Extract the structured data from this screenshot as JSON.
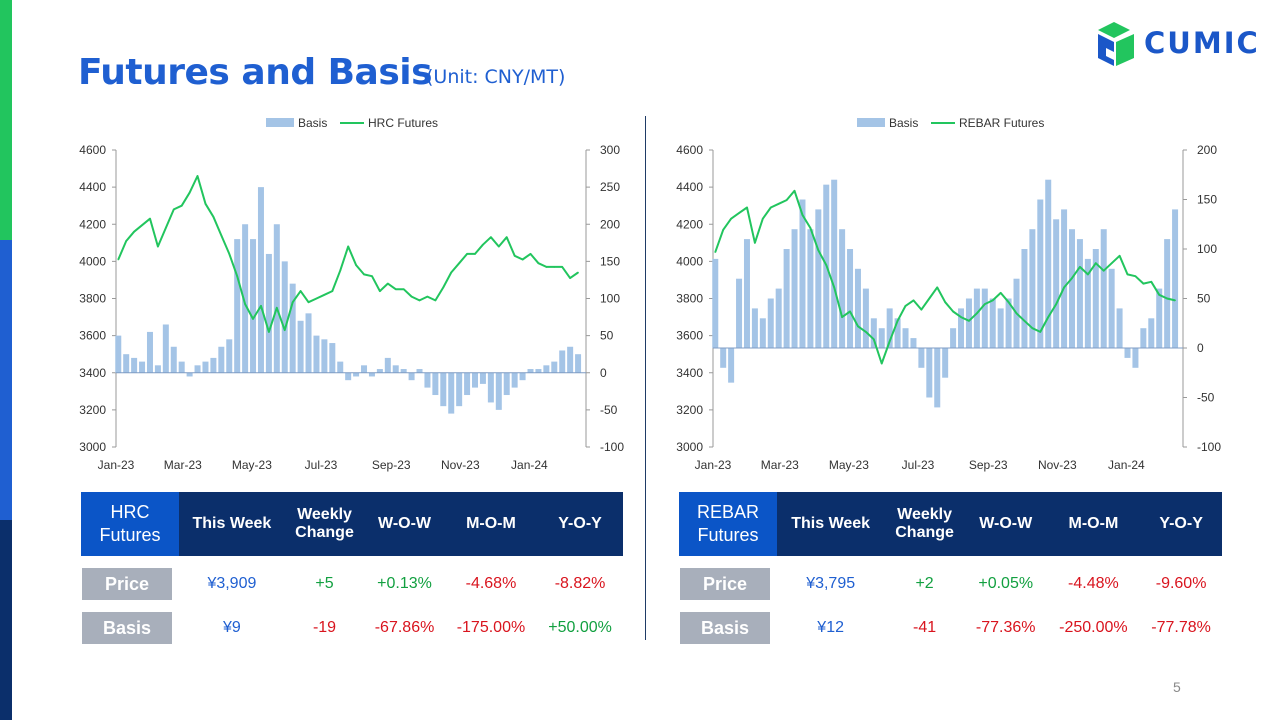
{
  "title": "Futures and Basis",
  "unit": "(Unit: CNY/MT)",
  "logo": {
    "text": "CUMIC",
    "icon": "cumic-logo-icon"
  },
  "page_number": "5",
  "colors": {
    "basis": "#a4c4e6",
    "futures": "#22c55e",
    "title": "#1f5fd1",
    "header": "#0b2f6b",
    "header_first": "#0b55c7"
  },
  "chart_data": [
    {
      "type": "bar+line",
      "legend": [
        "Basis",
        "HRC Futures"
      ],
      "x_ticks": [
        "Jan-23",
        "Mar-23",
        "May-23",
        "Jul-23",
        "Sep-23",
        "Nov-23",
        "Jan-24"
      ],
      "y_left_ticks": [
        "4600",
        "4400",
        "4200",
        "4000",
        "3800",
        "3600",
        "3400",
        "3200",
        "3000"
      ],
      "y_right_ticks": [
        "300",
        "250",
        "200",
        "150",
        "100",
        "50",
        "0",
        "-50",
        "-100"
      ],
      "ylim_left": [
        3000,
        4600
      ],
      "ylim_right": [
        -100,
        300
      ],
      "futures_series": [
        [
          "2023-01-03",
          4010
        ],
        [
          "2023-01-10",
          4110
        ],
        [
          "2023-01-17",
          4160
        ],
        [
          "2023-01-31",
          4230
        ],
        [
          "2023-02-07",
          4080
        ],
        [
          "2023-02-14",
          4180
        ],
        [
          "2023-02-21",
          4280
        ],
        [
          "2023-02-28",
          4300
        ],
        [
          "2023-03-07",
          4370
        ],
        [
          "2023-03-14",
          4460
        ],
        [
          "2023-03-21",
          4310
        ],
        [
          "2023-03-28",
          4240
        ],
        [
          "2023-04-04",
          4140
        ],
        [
          "2023-04-11",
          4040
        ],
        [
          "2023-04-18",
          3920
        ],
        [
          "2023-04-25",
          3770
        ],
        [
          "2023-05-02",
          3690
        ],
        [
          "2023-05-09",
          3760
        ],
        [
          "2023-05-16",
          3620
        ],
        [
          "2023-05-23",
          3750
        ],
        [
          "2023-05-30",
          3630
        ],
        [
          "2023-06-06",
          3780
        ],
        [
          "2023-06-13",
          3840
        ],
        [
          "2023-06-20",
          3780
        ],
        [
          "2023-06-27",
          3800
        ],
        [
          "2023-07-04",
          3820
        ],
        [
          "2023-07-11",
          3840
        ],
        [
          "2023-07-18",
          3950
        ],
        [
          "2023-07-25",
          4080
        ],
        [
          "2023-08-01",
          3980
        ],
        [
          "2023-08-08",
          3930
        ],
        [
          "2023-08-15",
          3920
        ],
        [
          "2023-08-22",
          3840
        ],
        [
          "2023-08-29",
          3880
        ],
        [
          "2023-09-05",
          3850
        ],
        [
          "2023-09-12",
          3850
        ],
        [
          "2023-09-19",
          3810
        ],
        [
          "2023-09-26",
          3790
        ],
        [
          "2023-10-03",
          3810
        ],
        [
          "2023-10-10",
          3790
        ],
        [
          "2023-10-17",
          3860
        ],
        [
          "2023-10-24",
          3940
        ],
        [
          "2023-10-31",
          3990
        ],
        [
          "2023-11-07",
          4040
        ],
        [
          "2023-11-14",
          4040
        ],
        [
          "2023-11-21",
          4090
        ],
        [
          "2023-11-28",
          4130
        ],
        [
          "2023-12-05",
          4080
        ],
        [
          "2023-12-12",
          4130
        ],
        [
          "2023-12-19",
          4030
        ],
        [
          "2023-12-26",
          4010
        ],
        [
          "2024-01-02",
          4040
        ],
        [
          "2024-01-09",
          3990
        ],
        [
          "2024-01-16",
          3970
        ],
        [
          "2024-01-23",
          3970
        ],
        [
          "2024-01-30",
          3970
        ],
        [
          "2024-02-06",
          3910
        ],
        [
          "2024-02-13",
          3940
        ]
      ],
      "basis_series": [
        [
          "2023-01-03",
          50
        ],
        [
          "2023-01-10",
          25
        ],
        [
          "2023-01-17",
          20
        ],
        [
          "2023-01-24",
          15
        ],
        [
          "2023-01-31",
          55
        ],
        [
          "2023-02-07",
          10
        ],
        [
          "2023-02-14",
          65
        ],
        [
          "2023-02-21",
          35
        ],
        [
          "2023-02-28",
          15
        ],
        [
          "2023-03-07",
          -5
        ],
        [
          "2023-03-14",
          10
        ],
        [
          "2023-03-21",
          15
        ],
        [
          "2023-03-28",
          20
        ],
        [
          "2023-04-04",
          35
        ],
        [
          "2023-04-11",
          45
        ],
        [
          "2023-04-18",
          180
        ],
        [
          "2023-04-25",
          200
        ],
        [
          "2023-05-02",
          180
        ],
        [
          "2023-05-09",
          250
        ],
        [
          "2023-05-16",
          160
        ],
        [
          "2023-05-23",
          200
        ],
        [
          "2023-05-30",
          150
        ],
        [
          "2023-06-06",
          120
        ],
        [
          "2023-06-13",
          70
        ],
        [
          "2023-06-20",
          80
        ],
        [
          "2023-06-27",
          50
        ],
        [
          "2023-07-04",
          45
        ],
        [
          "2023-07-11",
          40
        ],
        [
          "2023-07-18",
          15
        ],
        [
          "2023-07-25",
          -10
        ],
        [
          "2023-08-01",
          -5
        ],
        [
          "2023-08-08",
          10
        ],
        [
          "2023-08-15",
          -5
        ],
        [
          "2023-08-22",
          5
        ],
        [
          "2023-08-29",
          20
        ],
        [
          "2023-09-05",
          10
        ],
        [
          "2023-09-12",
          5
        ],
        [
          "2023-09-19",
          -10
        ],
        [
          "2023-09-26",
          5
        ],
        [
          "2023-10-03",
          -20
        ],
        [
          "2023-10-10",
          -30
        ],
        [
          "2023-10-17",
          -45
        ],
        [
          "2023-10-24",
          -55
        ],
        [
          "2023-10-31",
          -45
        ],
        [
          "2023-11-07",
          -30
        ],
        [
          "2023-11-14",
          -20
        ],
        [
          "2023-11-21",
          -15
        ],
        [
          "2023-11-28",
          -40
        ],
        [
          "2023-12-05",
          -50
        ],
        [
          "2023-12-12",
          -30
        ],
        [
          "2023-12-19",
          -20
        ],
        [
          "2023-12-26",
          -10
        ],
        [
          "2024-01-02",
          5
        ],
        [
          "2024-01-09",
          5
        ],
        [
          "2024-01-16",
          10
        ],
        [
          "2024-01-23",
          15
        ],
        [
          "2024-01-30",
          30
        ],
        [
          "2024-02-06",
          35
        ],
        [
          "2024-02-13",
          25
        ]
      ]
    },
    {
      "type": "bar+line",
      "legend": [
        "Basis",
        "REBAR Futures"
      ],
      "x_ticks": [
        "Jan-23",
        "Mar-23",
        "May-23",
        "Jul-23",
        "Sep-23",
        "Nov-23",
        "Jan-24"
      ],
      "y_left_ticks": [
        "4600",
        "4400",
        "4200",
        "4000",
        "3800",
        "3600",
        "3400",
        "3200",
        "3000"
      ],
      "y_right_ticks": [
        "200",
        "150",
        "100",
        "50",
        "0",
        "-50",
        "-100"
      ],
      "ylim_left": [
        3000,
        4600
      ],
      "ylim_right": [
        -100,
        200
      ],
      "futures_series": [
        [
          "2023-01-03",
          4050
        ],
        [
          "2023-01-10",
          4170
        ],
        [
          "2023-01-17",
          4230
        ],
        [
          "2023-01-24",
          4260
        ],
        [
          "2023-01-31",
          4290
        ],
        [
          "2023-02-07",
          4100
        ],
        [
          "2023-02-14",
          4230
        ],
        [
          "2023-02-21",
          4290
        ],
        [
          "2023-02-28",
          4310
        ],
        [
          "2023-03-07",
          4330
        ],
        [
          "2023-03-14",
          4380
        ],
        [
          "2023-03-21",
          4250
        ],
        [
          "2023-03-28",
          4180
        ],
        [
          "2023-04-04",
          4060
        ],
        [
          "2023-04-11",
          3980
        ],
        [
          "2023-04-18",
          3860
        ],
        [
          "2023-04-25",
          3700
        ],
        [
          "2023-05-02",
          3730
        ],
        [
          "2023-05-09",
          3650
        ],
        [
          "2023-05-16",
          3620
        ],
        [
          "2023-05-23",
          3580
        ],
        [
          "2023-05-30",
          3450
        ],
        [
          "2023-06-06",
          3570
        ],
        [
          "2023-06-13",
          3680
        ],
        [
          "2023-06-20",
          3760
        ],
        [
          "2023-06-27",
          3790
        ],
        [
          "2023-07-04",
          3740
        ],
        [
          "2023-07-11",
          3800
        ],
        [
          "2023-07-18",
          3860
        ],
        [
          "2023-07-25",
          3780
        ],
        [
          "2023-08-01",
          3730
        ],
        [
          "2023-08-08",
          3700
        ],
        [
          "2023-08-15",
          3680
        ],
        [
          "2023-08-22",
          3720
        ],
        [
          "2023-08-29",
          3770
        ],
        [
          "2023-09-05",
          3790
        ],
        [
          "2023-09-12",
          3830
        ],
        [
          "2023-09-19",
          3780
        ],
        [
          "2023-09-26",
          3720
        ],
        [
          "2023-10-03",
          3680
        ],
        [
          "2023-10-10",
          3640
        ],
        [
          "2023-10-17",
          3620
        ],
        [
          "2023-10-24",
          3700
        ],
        [
          "2023-10-31",
          3770
        ],
        [
          "2023-11-07",
          3860
        ],
        [
          "2023-11-14",
          3910
        ],
        [
          "2023-11-21",
          3970
        ],
        [
          "2023-11-28",
          3930
        ],
        [
          "2023-12-05",
          3990
        ],
        [
          "2023-12-12",
          3950
        ],
        [
          "2023-12-19",
          3990
        ],
        [
          "2023-12-26",
          4030
        ],
        [
          "2024-01-02",
          3930
        ],
        [
          "2024-01-09",
          3920
        ],
        [
          "2024-01-16",
          3880
        ],
        [
          "2024-01-23",
          3890
        ],
        [
          "2024-01-30",
          3820
        ],
        [
          "2024-02-06",
          3800
        ],
        [
          "2024-02-13",
          3790
        ]
      ],
      "basis_series": [
        [
          "2023-01-03",
          90
        ],
        [
          "2023-01-10",
          -20
        ],
        [
          "2023-01-17",
          -35
        ],
        [
          "2023-01-24",
          70
        ],
        [
          "2023-01-31",
          110
        ],
        [
          "2023-02-07",
          40
        ],
        [
          "2023-02-14",
          30
        ],
        [
          "2023-02-21",
          50
        ],
        [
          "2023-02-28",
          60
        ],
        [
          "2023-03-07",
          100
        ],
        [
          "2023-03-14",
          120
        ],
        [
          "2023-03-21",
          150
        ],
        [
          "2023-03-28",
          120
        ],
        [
          "2023-04-04",
          140
        ],
        [
          "2023-04-11",
          165
        ],
        [
          "2023-04-18",
          170
        ],
        [
          "2023-04-25",
          120
        ],
        [
          "2023-05-02",
          100
        ],
        [
          "2023-05-09",
          80
        ],
        [
          "2023-05-16",
          60
        ],
        [
          "2023-05-23",
          30
        ],
        [
          "2023-05-30",
          20
        ],
        [
          "2023-06-06",
          40
        ],
        [
          "2023-06-13",
          30
        ],
        [
          "2023-06-20",
          20
        ],
        [
          "2023-06-27",
          10
        ],
        [
          "2023-07-04",
          -20
        ],
        [
          "2023-07-11",
          -50
        ],
        [
          "2023-07-18",
          -60
        ],
        [
          "2023-07-25",
          -30
        ],
        [
          "2023-08-01",
          20
        ],
        [
          "2023-08-08",
          40
        ],
        [
          "2023-08-15",
          50
        ],
        [
          "2023-08-22",
          60
        ],
        [
          "2023-08-29",
          60
        ],
        [
          "2023-09-05",
          50
        ],
        [
          "2023-09-12",
          40
        ],
        [
          "2023-09-19",
          50
        ],
        [
          "2023-09-26",
          70
        ],
        [
          "2023-10-03",
          100
        ],
        [
          "2023-10-10",
          120
        ],
        [
          "2023-10-17",
          150
        ],
        [
          "2023-10-24",
          170
        ],
        [
          "2023-10-31",
          130
        ],
        [
          "2023-11-07",
          140
        ],
        [
          "2023-11-14",
          120
        ],
        [
          "2023-11-21",
          110
        ],
        [
          "2023-11-28",
          90
        ],
        [
          "2023-12-05",
          100
        ],
        [
          "2023-12-12",
          120
        ],
        [
          "2023-12-19",
          80
        ],
        [
          "2023-12-26",
          40
        ],
        [
          "2024-01-02",
          -10
        ],
        [
          "2024-01-09",
          -20
        ],
        [
          "2024-01-16",
          20
        ],
        [
          "2024-01-23",
          30
        ],
        [
          "2024-01-30",
          60
        ],
        [
          "2024-02-06",
          110
        ],
        [
          "2024-02-13",
          140
        ]
      ]
    }
  ],
  "tables": [
    {
      "header_first": [
        "HRC",
        "Futures"
      ],
      "headers": [
        "This Week",
        [
          "Weekly",
          "Change"
        ],
        "W-O-W",
        "M-O-M",
        "Y-O-Y"
      ],
      "rows": [
        {
          "label": "Price",
          "values": [
            "¥3,909",
            "+5",
            "+0.13%",
            "-4.68%",
            "-8.82%"
          ],
          "tones": [
            "blue",
            "green",
            "green",
            "red",
            "red"
          ]
        },
        {
          "label": "Basis",
          "values": [
            "¥9",
            "-19",
            "-67.86%",
            "-175.00%",
            "+50.00%"
          ],
          "tones": [
            "blue",
            "red",
            "red",
            "red",
            "green"
          ]
        }
      ]
    },
    {
      "header_first": [
        "REBAR",
        "Futures"
      ],
      "headers": [
        "This Week",
        [
          "Weekly",
          "Change"
        ],
        "W-O-W",
        "M-O-M",
        "Y-O-Y"
      ],
      "rows": [
        {
          "label": "Price",
          "values": [
            "¥3,795",
            "+2",
            "+0.05%",
            "-4.48%",
            "-9.60%"
          ],
          "tones": [
            "blue",
            "green",
            "green",
            "red",
            "red"
          ]
        },
        {
          "label": "Basis",
          "values": [
            "¥12",
            "-41",
            "-77.36%",
            "-250.00%",
            "-77.78%"
          ],
          "tones": [
            "blue",
            "red",
            "red",
            "red",
            "red"
          ]
        }
      ]
    }
  ]
}
